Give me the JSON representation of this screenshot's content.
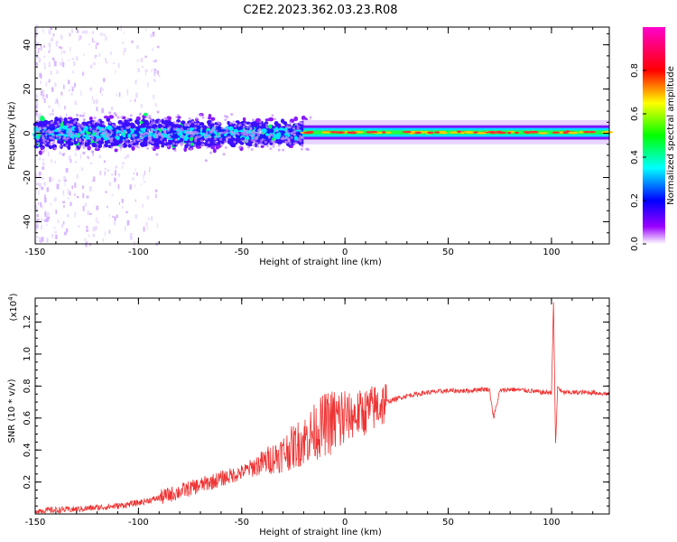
{
  "title": "C2E2.2023.362.03.23.R08",
  "chart_data": [
    {
      "type": "heatmap",
      "xlabel": "Height of straight line (km)",
      "ylabel": "Frequency (Hz)",
      "xlim": [
        -150,
        128
      ],
      "ylim": [
        -50,
        48
      ],
      "xticks": [
        "-150",
        "-100",
        "-50",
        "0",
        "50",
        "100"
      ],
      "yticks": [
        "-40",
        "-20",
        "0",
        "20",
        "40"
      ],
      "colorbar": {
        "label": "Normalized spectral amplitude",
        "ticks": [
          "0.0",
          "0.2",
          "0.4",
          "0.6",
          "0.8"
        ],
        "range": [
          0,
          1
        ],
        "colormap": [
          "#ff00cc",
          "#ff0000",
          "#ffff00",
          "#00ff00",
          "#00ffff",
          "#0000ff",
          "#9900ff",
          "#ffffff"
        ]
      }
    },
    {
      "type": "line",
      "xlabel": "Height of straight line (km)",
      "ylabel": "SNR (10 * v/v)",
      "scale_note": "(x10",
      "scale_exp": "4",
      "scale_close": ")",
      "xlim": [
        -150,
        128
      ],
      "ylim": [
        0,
        1.35
      ],
      "xticks": [
        "-150",
        "-100",
        "-50",
        "0",
        "50",
        "100"
      ],
      "yticks": [
        "0.2",
        "0.4",
        "0.6",
        "0.8",
        "1.0",
        "1.2"
      ],
      "series": [
        {
          "color": "#ee3333",
          "x": [
            -150,
            -130,
            -110,
            -100,
            -90,
            -80,
            -70,
            -60,
            -50,
            -40,
            -30,
            -20,
            -10,
            0,
            10,
            20,
            30,
            40,
            50,
            60,
            65,
            70,
            72,
            75,
            80,
            90,
            95,
            100,
            101,
            102,
            103,
            105,
            110,
            120,
            128
          ],
          "y": [
            0.02,
            0.03,
            0.05,
            0.07,
            0.1,
            0.14,
            0.18,
            0.22,
            0.26,
            0.32,
            0.38,
            0.46,
            0.56,
            0.6,
            0.64,
            0.7,
            0.74,
            0.76,
            0.77,
            0.77,
            0.78,
            0.78,
            0.6,
            0.77,
            0.78,
            0.77,
            0.76,
            0.76,
            1.32,
            0.42,
            0.8,
            0.76,
            0.76,
            0.76,
            0.75
          ]
        }
      ]
    }
  ]
}
